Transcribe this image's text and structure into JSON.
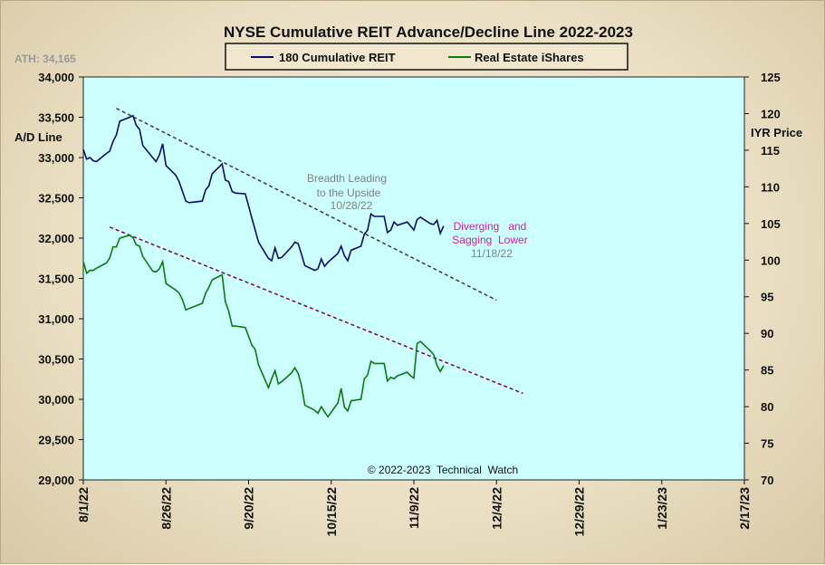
{
  "chart_data": {
    "type": "line",
    "title": "NYSE Cumulative  REIT Advance/Decline  Line 2022-2023",
    "ath_label": "ATH: 34,165",
    "y_left_label": "A/D Line",
    "y_right_label": "IYR Price",
    "copyright": "© 2022-2023  Technical  Watch",
    "ylim_left": [
      29000,
      34000
    ],
    "ylim_right": [
      70,
      125
    ],
    "left_ticks": [
      "34,000",
      "33,500",
      "33,000",
      "32,500",
      "32,000",
      "31,500",
      "31,000",
      "30,500",
      "30,000",
      "29,500",
      "29,000"
    ],
    "right_ticks": [
      "125",
      "120",
      "115",
      "110",
      "105",
      "100",
      "95",
      "90",
      "85",
      "80",
      "75",
      "70"
    ],
    "x_start": "2022-08-01",
    "x_end": "2023-02-17",
    "x_ticks": [
      "8/1/22",
      "8/26/22",
      "9/20/22",
      "10/15/22",
      "11/9/22",
      "12/4/22",
      "12/29/22",
      "1/23/23",
      "2/17/23"
    ],
    "grid": false,
    "legend": "top-center",
    "series": [
      {
        "name": "180 Cumulative REIT",
        "axis": "left",
        "color": "#0a0a6e",
        "points": [
          [
            "2022-08-01",
            33100
          ],
          [
            "2022-08-02",
            32980
          ],
          [
            "2022-08-03",
            33000
          ],
          [
            "2022-08-04",
            32960
          ],
          [
            "2022-08-05",
            32950
          ],
          [
            "2022-08-08",
            33050
          ],
          [
            "2022-08-09",
            33080
          ],
          [
            "2022-08-10",
            33200
          ],
          [
            "2022-08-11",
            33280
          ],
          [
            "2022-08-12",
            33450
          ],
          [
            "2022-08-15",
            33500
          ],
          [
            "2022-08-16",
            33520
          ],
          [
            "2022-08-17",
            33400
          ],
          [
            "2022-08-18",
            33350
          ],
          [
            "2022-08-19",
            33150
          ],
          [
            "2022-08-22",
            33000
          ],
          [
            "2022-08-23",
            32950
          ],
          [
            "2022-08-24",
            33030
          ],
          [
            "2022-08-25",
            33170
          ],
          [
            "2022-08-26",
            32900
          ],
          [
            "2022-08-29",
            32780
          ],
          [
            "2022-08-30",
            32700
          ],
          [
            "2022-08-31",
            32580
          ],
          [
            "2022-09-01",
            32460
          ],
          [
            "2022-09-02",
            32440
          ],
          [
            "2022-09-06",
            32460
          ],
          [
            "2022-09-07",
            32600
          ],
          [
            "2022-09-08",
            32650
          ],
          [
            "2022-09-09",
            32800
          ],
          [
            "2022-09-12",
            32920
          ],
          [
            "2022-09-13",
            32720
          ],
          [
            "2022-09-14",
            32700
          ],
          [
            "2022-09-15",
            32580
          ],
          [
            "2022-09-16",
            32560
          ],
          [
            "2022-09-19",
            32550
          ],
          [
            "2022-09-20",
            32400
          ],
          [
            "2022-09-21",
            32250
          ],
          [
            "2022-09-22",
            32100
          ],
          [
            "2022-09-23",
            31950
          ],
          [
            "2022-09-26",
            31750
          ],
          [
            "2022-09-27",
            31720
          ],
          [
            "2022-09-28",
            31880
          ],
          [
            "2022-09-29",
            31750
          ],
          [
            "2022-09-30",
            31760
          ],
          [
            "2022-10-03",
            31890
          ],
          [
            "2022-10-04",
            31950
          ],
          [
            "2022-10-05",
            31930
          ],
          [
            "2022-10-06",
            31800
          ],
          [
            "2022-10-07",
            31660
          ],
          [
            "2022-10-10",
            31600
          ],
          [
            "2022-10-11",
            31620
          ],
          [
            "2022-10-12",
            31740
          ],
          [
            "2022-10-13",
            31650
          ],
          [
            "2022-10-14",
            31700
          ],
          [
            "2022-10-17",
            31810
          ],
          [
            "2022-10-18",
            31900
          ],
          [
            "2022-10-19",
            31780
          ],
          [
            "2022-10-20",
            31720
          ],
          [
            "2022-10-21",
            31850
          ],
          [
            "2022-10-24",
            31900
          ],
          [
            "2022-10-25",
            32050
          ],
          [
            "2022-10-26",
            32100
          ],
          [
            "2022-10-27",
            32300
          ],
          [
            "2022-10-28",
            32270
          ],
          [
            "2022-10-31",
            32270
          ],
          [
            "2022-11-01",
            32070
          ],
          [
            "2022-11-02",
            32100
          ],
          [
            "2022-11-03",
            32200
          ],
          [
            "2022-11-04",
            32160
          ],
          [
            "2022-11-07",
            32200
          ],
          [
            "2022-11-08",
            32150
          ],
          [
            "2022-11-09",
            32100
          ],
          [
            "2022-11-10",
            32230
          ],
          [
            "2022-11-11",
            32260
          ],
          [
            "2022-11-14",
            32180
          ],
          [
            "2022-11-15",
            32170
          ],
          [
            "2022-11-16",
            32220
          ],
          [
            "2022-11-17",
            32060
          ],
          [
            "2022-11-18",
            32150
          ]
        ]
      },
      {
        "name": "Real Estate iShares",
        "axis": "right",
        "color": "#0a7a0a",
        "points": [
          [
            "2022-08-01",
            99.8
          ],
          [
            "2022-08-02",
            98.2
          ],
          [
            "2022-08-03",
            98.6
          ],
          [
            "2022-08-04",
            98.6
          ],
          [
            "2022-08-05",
            98.9
          ],
          [
            "2022-08-08",
            99.6
          ],
          [
            "2022-08-09",
            100.3
          ],
          [
            "2022-08-10",
            101.8
          ],
          [
            "2022-08-11",
            101.8
          ],
          [
            "2022-08-12",
            103.0
          ],
          [
            "2022-08-15",
            103.4
          ],
          [
            "2022-08-16",
            103.1
          ],
          [
            "2022-08-17",
            102.1
          ],
          [
            "2022-08-18",
            101.9
          ],
          [
            "2022-08-19",
            100.5
          ],
          [
            "2022-08-22",
            98.5
          ],
          [
            "2022-08-23",
            98.4
          ],
          [
            "2022-08-24",
            98.8
          ],
          [
            "2022-08-25",
            99.8
          ],
          [
            "2022-08-26",
            96.8
          ],
          [
            "2022-08-29",
            95.9
          ],
          [
            "2022-08-30",
            95.5
          ],
          [
            "2022-08-31",
            94.6
          ],
          [
            "2022-09-01",
            93.2
          ],
          [
            "2022-09-02",
            93.4
          ],
          [
            "2022-09-06",
            94.1
          ],
          [
            "2022-09-07",
            95.5
          ],
          [
            "2022-09-08",
            96.3
          ],
          [
            "2022-09-09",
            97.3
          ],
          [
            "2022-09-12",
            98.0
          ],
          [
            "2022-09-13",
            94.3
          ],
          [
            "2022-09-14",
            93.0
          ],
          [
            "2022-09-15",
            91.0
          ],
          [
            "2022-09-16",
            91.0
          ],
          [
            "2022-09-19",
            90.8
          ],
          [
            "2022-09-20",
            89.6
          ],
          [
            "2022-09-21",
            88.4
          ],
          [
            "2022-09-22",
            87.8
          ],
          [
            "2022-09-23",
            85.7
          ],
          [
            "2022-09-26",
            82.6
          ],
          [
            "2022-09-27",
            83.8
          ],
          [
            "2022-09-28",
            84.9
          ],
          [
            "2022-09-29",
            83.1
          ],
          [
            "2022-09-30",
            83.4
          ],
          [
            "2022-10-03",
            84.6
          ],
          [
            "2022-10-04",
            85.3
          ],
          [
            "2022-10-05",
            84.5
          ],
          [
            "2022-10-06",
            82.9
          ],
          [
            "2022-10-07",
            80.2
          ],
          [
            "2022-10-10",
            79.5
          ],
          [
            "2022-10-11",
            79.1
          ],
          [
            "2022-10-12",
            80.0
          ],
          [
            "2022-10-13",
            79.3
          ],
          [
            "2022-10-14",
            78.6
          ],
          [
            "2022-10-17",
            80.5
          ],
          [
            "2022-10-18",
            82.5
          ],
          [
            "2022-10-19",
            79.9
          ],
          [
            "2022-10-20",
            79.4
          ],
          [
            "2022-10-21",
            80.8
          ],
          [
            "2022-10-24",
            81.0
          ],
          [
            "2022-10-25",
            83.8
          ],
          [
            "2022-10-26",
            84.3
          ],
          [
            "2022-10-27",
            86.2
          ],
          [
            "2022-10-28",
            85.9
          ],
          [
            "2022-10-31",
            85.9
          ],
          [
            "2022-11-01",
            83.5
          ],
          [
            "2022-11-02",
            84.0
          ],
          [
            "2022-11-03",
            83.8
          ],
          [
            "2022-11-04",
            84.2
          ],
          [
            "2022-11-07",
            84.7
          ],
          [
            "2022-11-08",
            84.2
          ],
          [
            "2022-11-09",
            83.9
          ],
          [
            "2022-11-10",
            88.6
          ],
          [
            "2022-11-11",
            88.9
          ],
          [
            "2022-11-14",
            87.6
          ],
          [
            "2022-11-15",
            87.1
          ],
          [
            "2022-11-16",
            85.6
          ],
          [
            "2022-11-17",
            84.8
          ],
          [
            "2022-11-18",
            85.6
          ]
        ]
      }
    ],
    "trendlines": [
      {
        "axis": "left",
        "color": "#3a3a3a",
        "from": [
          "2022-08-11",
          33610
        ],
        "to": [
          "2022-12-04",
          31230
        ]
      },
      {
        "axis": "right",
        "color": "#7a005a",
        "from": [
          "2022-08-09",
          104.5
        ],
        "to": [
          "2022-12-12",
          81.8
        ]
      }
    ],
    "annotations": [
      {
        "id": "breadth",
        "lines": [
          "Breadth Leading",
          "to the Upside",
          "10/28/22"
        ],
        "color": "#808080"
      },
      {
        "id": "diverging",
        "lines": [
          "Diverging   and",
          "Sagging  Lower"
        ],
        "color": "#d020a0"
      },
      {
        "id": "diverging-date",
        "lines": [
          "11/18/22"
        ],
        "color": "#808080"
      }
    ]
  }
}
